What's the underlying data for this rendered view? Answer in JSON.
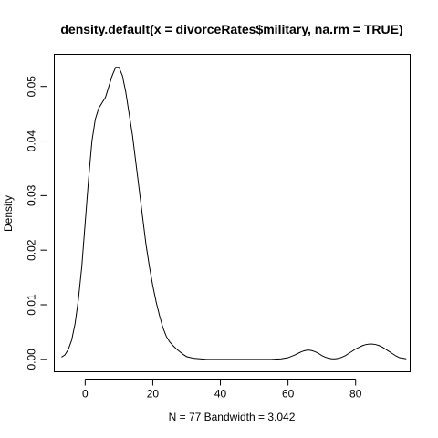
{
  "chart_data": {
    "type": "line",
    "title": "density.default(x = divorceRates$military, na.rm = TRUE)",
    "xlabel": "N = 77   Bandwidth = 3.042",
    "ylabel": "Density",
    "xlim": [
      -9,
      96
    ],
    "ylim": [
      -0.0022,
      0.0558
    ],
    "xticks": [
      0,
      20,
      40,
      60,
      80
    ],
    "yticks": [
      0.0,
      0.01,
      0.02,
      0.03,
      0.04,
      0.05
    ],
    "xtick_labels": [
      "0",
      "20",
      "40",
      "60",
      "80"
    ],
    "ytick_labels": [
      "0.00",
      "0.01",
      "0.02",
      "0.03",
      "0.04",
      "0.05"
    ],
    "grid": false,
    "series": [
      {
        "x": [
          -7.0,
          -6.0,
          -5.0,
          -4.0,
          -3.0,
          -2.0,
          -1.0,
          0.0,
          1.0,
          2.0,
          3.0,
          4.0,
          5.0,
          6.0,
          7.0,
          8.0,
          9.0,
          10.0,
          11.0,
          12.0,
          13.0,
          14.0,
          15.0,
          16.0,
          17.0,
          18.0,
          19.0,
          20.0,
          21.0,
          22.0,
          23.0,
          24.0,
          25.0,
          26.0,
          27.0,
          28.0,
          29.0,
          30.0,
          32.0,
          34.0,
          36.0,
          38.0,
          40.0,
          45.0,
          50.0,
          55.0,
          58.0,
          60.0,
          62.0,
          63.0,
          64.0,
          65.0,
          66.0,
          67.0,
          68.0,
          69.0,
          70.0,
          71.0,
          72.0,
          73.0,
          74.0,
          75.0,
          76.0,
          77.0,
          78.0,
          79.0,
          80.0,
          81.0,
          82.0,
          83.0,
          84.0,
          85.0,
          86.0,
          87.0,
          88.0,
          89.0,
          90.0,
          91.0,
          92.0,
          93.0,
          94.0,
          95.0
        ],
        "y": [
          0.0004,
          0.0008,
          0.0018,
          0.0035,
          0.0065,
          0.011,
          0.017,
          0.025,
          0.033,
          0.04,
          0.044,
          0.046,
          0.047,
          0.048,
          0.05,
          0.052,
          0.0535,
          0.0535,
          0.052,
          0.049,
          0.045,
          0.041,
          0.036,
          0.031,
          0.026,
          0.021,
          0.017,
          0.0135,
          0.0105,
          0.008,
          0.0058,
          0.0042,
          0.0032,
          0.0025,
          0.0019,
          0.0014,
          0.0009,
          0.0005,
          0.0002,
          0.0001,
          0.0,
          0.0,
          0.0,
          0.0,
          0.0,
          0.0,
          0.0001,
          0.0003,
          0.0008,
          0.0011,
          0.0014,
          0.0016,
          0.0017,
          0.0016,
          0.0014,
          0.0011,
          0.0007,
          0.0004,
          0.0002,
          0.0001,
          0.0001,
          0.0002,
          0.0004,
          0.0007,
          0.0011,
          0.0015,
          0.0019,
          0.0022,
          0.0025,
          0.0027,
          0.0028,
          0.0028,
          0.0027,
          0.0025,
          0.0022,
          0.0018,
          0.0014,
          0.001,
          0.0006,
          0.0003,
          0.0002,
          0.0001
        ]
      }
    ]
  }
}
